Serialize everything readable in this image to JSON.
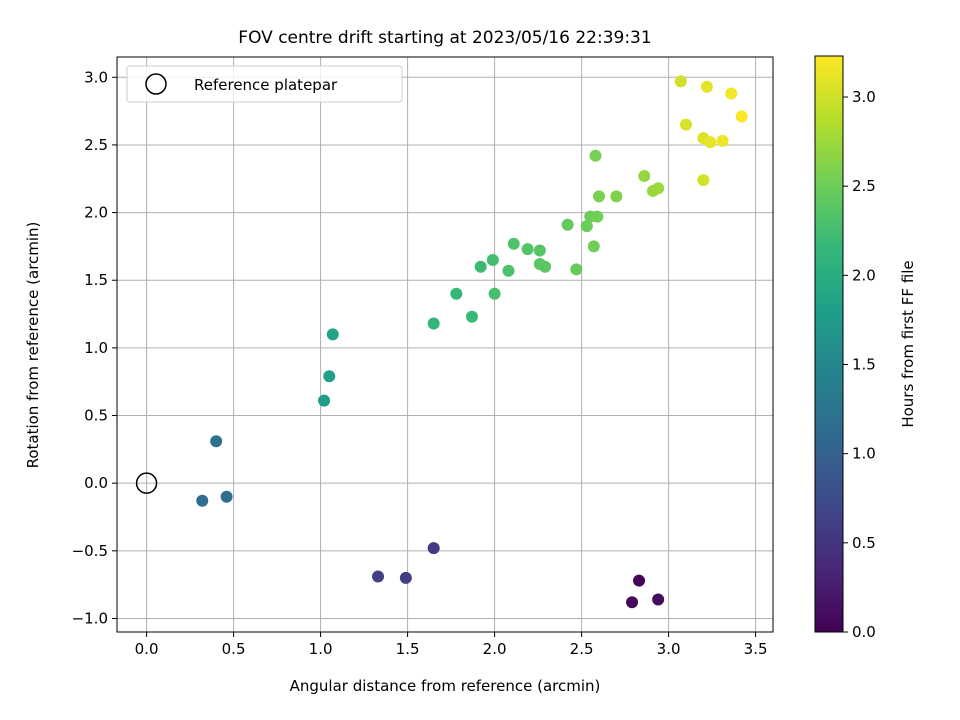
{
  "chart_data": {
    "type": "scatter",
    "title": "FOV centre drift starting at 2023/05/16 22:39:31",
    "xlabel": "Angular distance from reference (arcmin)",
    "ylabel": "Rotation from reference (arcmin)",
    "xlim": [
      -0.17,
      3.6
    ],
    "ylim": [
      -1.1,
      3.15
    ],
    "xticks": [
      0.0,
      0.5,
      1.0,
      1.5,
      2.0,
      2.5,
      3.0,
      3.5
    ],
    "xtick_labels": [
      "0.0",
      "0.5",
      "1.0",
      "1.5",
      "2.0",
      "2.5",
      "3.0",
      "3.5"
    ],
    "yticks": [
      -1.0,
      -0.5,
      0.0,
      0.5,
      1.0,
      1.5,
      2.0,
      2.5,
      3.0
    ],
    "ytick_labels": [
      "−1.0",
      "−0.5",
      "0.0",
      "0.5",
      "1.0",
      "1.5",
      "2.0",
      "2.5",
      "3.0"
    ],
    "grid": true,
    "legend": {
      "placement": "upper-left",
      "entries": [
        "Reference platepar"
      ]
    },
    "reference_point": {
      "x": 0.0,
      "y": 0.0,
      "label": "Reference platepar"
    },
    "colorbar": {
      "label": "Hours from first FF file",
      "min": 0.0,
      "max": 3.23,
      "ticks": [
        0.0,
        0.5,
        1.0,
        1.5,
        2.0,
        2.5,
        3.0
      ],
      "tick_labels": [
        "0.0",
        "0.5",
        "1.0",
        "1.5",
        "2.0",
        "2.5",
        "3.0"
      ],
      "colormap": "viridis",
      "colors": [
        "#440154",
        "#482878",
        "#3e4989",
        "#31688e",
        "#26828e",
        "#1f9e89",
        "#35b779",
        "#6ece58",
        "#b5de2b",
        "#fde725"
      ]
    },
    "series": [
      {
        "points": [
          {
            "x": 2.83,
            "y": -0.72,
            "c": 0.03
          },
          {
            "x": 2.79,
            "y": -0.88,
            "c": 0.07
          },
          {
            "x": 2.94,
            "y": -0.86,
            "c": 0.1
          },
          {
            "x": 1.65,
            "y": -0.48,
            "c": 0.55
          },
          {
            "x": 1.49,
            "y": -0.7,
            "c": 0.6
          },
          {
            "x": 1.33,
            "y": -0.69,
            "c": 0.62
          },
          {
            "x": 0.32,
            "y": -0.13,
            "c": 1.15
          },
          {
            "x": 0.46,
            "y": -0.1,
            "c": 1.18
          },
          {
            "x": 0.4,
            "y": 0.31,
            "c": 1.2
          },
          {
            "x": 1.02,
            "y": 0.61,
            "c": 1.8
          },
          {
            "x": 1.05,
            "y": 0.79,
            "c": 1.83
          },
          {
            "x": 1.07,
            "y": 1.1,
            "c": 1.87
          },
          {
            "x": 1.65,
            "y": 1.18,
            "c": 2.12
          },
          {
            "x": 1.78,
            "y": 1.4,
            "c": 2.15
          },
          {
            "x": 1.87,
            "y": 1.23,
            "c": 2.18
          },
          {
            "x": 1.92,
            "y": 1.6,
            "c": 2.2
          },
          {
            "x": 1.99,
            "y": 1.65,
            "c": 2.25
          },
          {
            "x": 2.0,
            "y": 1.4,
            "c": 2.27
          },
          {
            "x": 2.08,
            "y": 1.57,
            "c": 2.3
          },
          {
            "x": 2.11,
            "y": 1.77,
            "c": 2.32
          },
          {
            "x": 2.19,
            "y": 1.73,
            "c": 2.35
          },
          {
            "x": 2.26,
            "y": 1.72,
            "c": 2.37
          },
          {
            "x": 2.26,
            "y": 1.62,
            "c": 2.38
          },
          {
            "x": 2.29,
            "y": 1.6,
            "c": 2.4
          },
          {
            "x": 2.42,
            "y": 1.91,
            "c": 2.45
          },
          {
            "x": 2.47,
            "y": 1.58,
            "c": 2.47
          },
          {
            "x": 2.53,
            "y": 1.9,
            "c": 2.48
          },
          {
            "x": 2.55,
            "y": 1.97,
            "c": 2.5
          },
          {
            "x": 2.57,
            "y": 1.75,
            "c": 2.52
          },
          {
            "x": 2.59,
            "y": 1.97,
            "c": 2.53
          },
          {
            "x": 2.58,
            "y": 2.42,
            "c": 2.55
          },
          {
            "x": 2.6,
            "y": 2.12,
            "c": 2.57
          },
          {
            "x": 2.7,
            "y": 2.12,
            "c": 2.6
          },
          {
            "x": 2.86,
            "y": 2.27,
            "c": 2.7
          },
          {
            "x": 2.91,
            "y": 2.16,
            "c": 2.72
          },
          {
            "x": 2.94,
            "y": 2.18,
            "c": 2.74
          },
          {
            "x": 3.07,
            "y": 2.97,
            "c": 3.0
          },
          {
            "x": 3.1,
            "y": 2.65,
            "c": 3.05
          },
          {
            "x": 3.2,
            "y": 2.55,
            "c": 3.08
          },
          {
            "x": 3.22,
            "y": 2.93,
            "c": 3.1
          },
          {
            "x": 3.2,
            "y": 2.24,
            "c": 3.02
          },
          {
            "x": 3.24,
            "y": 2.52,
            "c": 3.12
          },
          {
            "x": 3.31,
            "y": 2.53,
            "c": 3.15
          },
          {
            "x": 3.36,
            "y": 2.88,
            "c": 3.18
          },
          {
            "x": 3.42,
            "y": 2.71,
            "c": 3.22
          }
        ]
      }
    ]
  }
}
